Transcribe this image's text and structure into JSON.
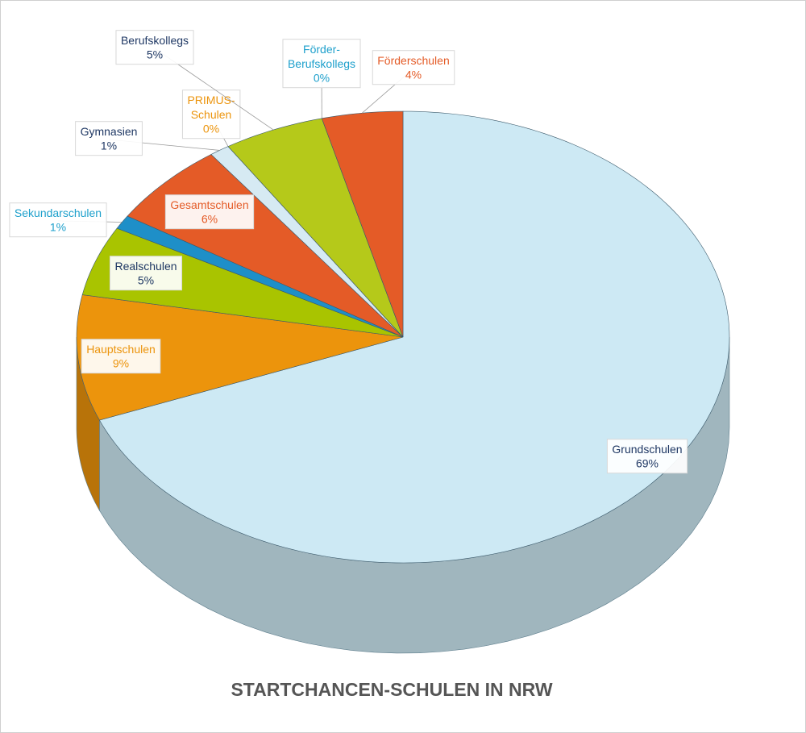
{
  "chart_data": {
    "type": "pie",
    "title": "STARTCHANCEN-SCHULEN IN NRW",
    "categories": [
      "Grundschulen",
      "Hauptschulen",
      "Realschulen",
      "Sekundarschulen",
      "Gesamtschulen",
      "Gymnasien",
      "PRIMUS-Schulen",
      "Berufskollegs",
      "Förder-Berufskollegs",
      "Förderschulen"
    ],
    "values": [
      69,
      9,
      5,
      1,
      6,
      1,
      0,
      5,
      0,
      4
    ],
    "value_labels": [
      "69%",
      "9%",
      "5%",
      "1%",
      "6%",
      "1%",
      "0%",
      "5%",
      "0%",
      "4%"
    ],
    "colors": [
      "#cde9f4",
      "#ec940c",
      "#a9c400",
      "#1e8fc8",
      "#e45b27",
      "#d6eaf3",
      "#ec940c",
      "#b5c91a",
      "#1e8fc8",
      "#e45b27"
    ],
    "label_colors": [
      "#1f3864",
      "#ec940c",
      "#1f3864",
      "#1ea0cc",
      "#e45b27",
      "#1f3864",
      "#ec940c",
      "#1f3864",
      "#1ea0cc",
      "#e45b27"
    ]
  }
}
